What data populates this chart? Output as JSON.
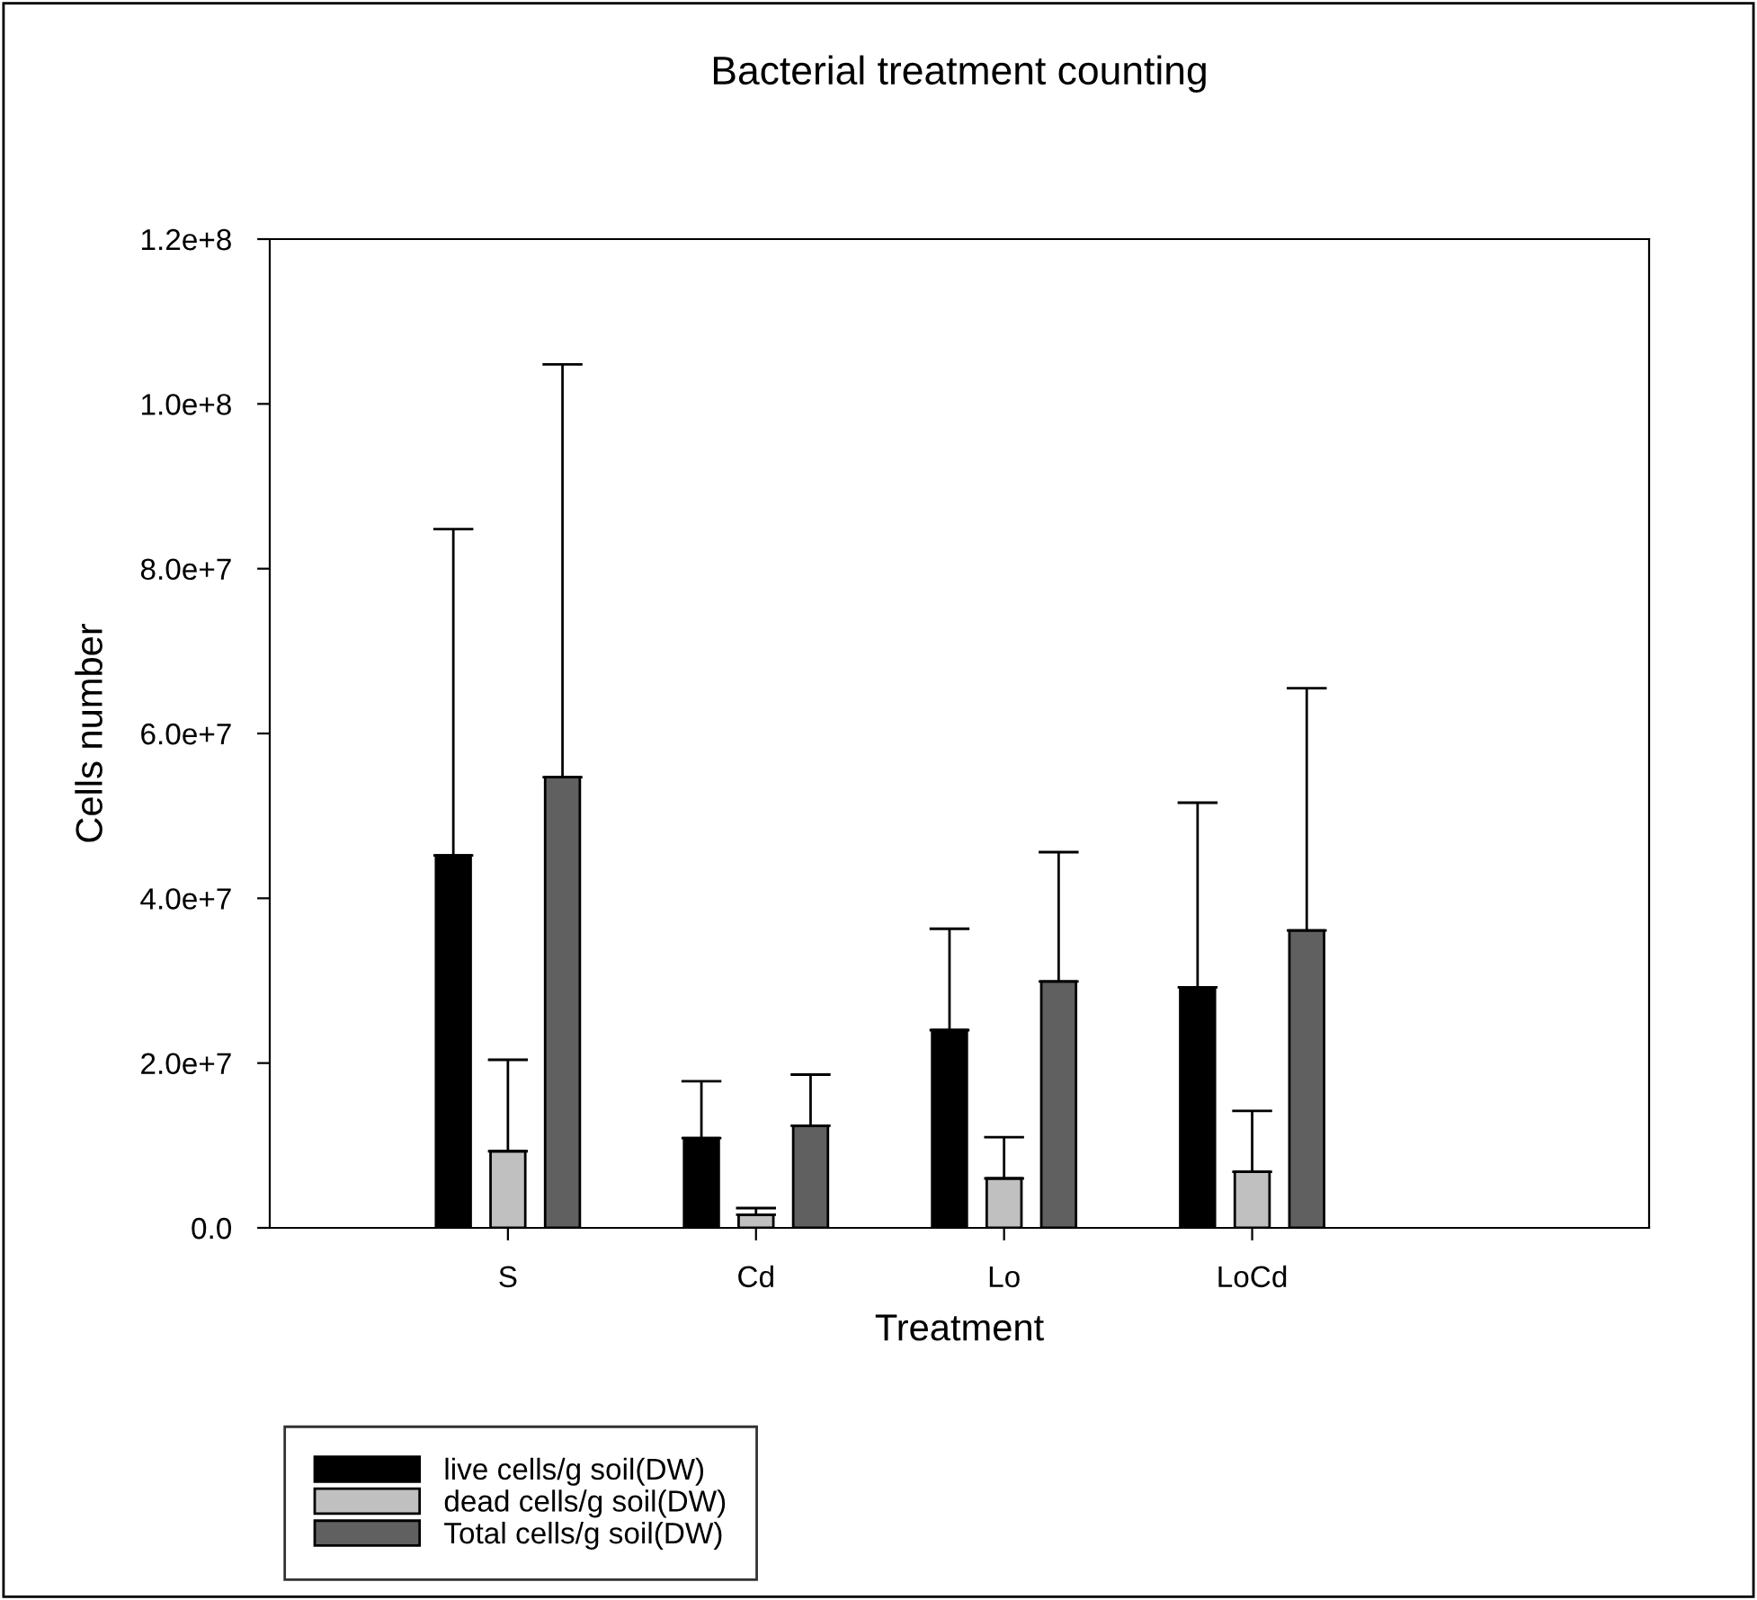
{
  "chart_data": {
    "type": "bar",
    "title": "Bacterial treatment counting",
    "xlabel": "Treatment",
    "ylabel": "Cells number",
    "categories": [
      "S",
      "Cd",
      "Lo",
      "LoCd"
    ],
    "series": [
      {
        "name": "live cells/g soil(DW)",
        "color": "#000000",
        "values": [
          45200000.0,
          10900000.0,
          24000000.0,
          29200000.0
        ],
        "errors": [
          [
            45200000.0,
            84800000.0
          ],
          [
            10900000.0,
            17800000.0
          ],
          [
            24000000.0,
            36300000.0
          ],
          [
            29200000.0,
            51600000.0
          ]
        ]
      },
      {
        "name": "dead cells/g soil(DW)",
        "color": "#c0c0c0",
        "values": [
          9300000.0,
          1600000.0,
          6000000.0,
          6800000.0
        ],
        "errors": [
          [
            9300000.0,
            20400000.0
          ],
          [
            1600000.0,
            2400000.0
          ],
          [
            6000000.0,
            11000000.0
          ],
          [
            6800000.0,
            14200000.0
          ]
        ]
      },
      {
        "name": "Total cells/g soil(DW)",
        "color": "#606060",
        "values": [
          54700000.0,
          12400000.0,
          29900000.0,
          36100000.0
        ],
        "errors": [
          [
            54700000.0,
            104800000.0
          ],
          [
            12400000.0,
            18600000.0
          ],
          [
            29900000.0,
            45600000.0
          ],
          [
            36100000.0,
            65500000.0
          ]
        ]
      }
    ],
    "ylim": [
      0,
      120000000.0
    ],
    "yticks": [
      {
        "value": 0,
        "label": "0.0"
      },
      {
        "value": 20000000.0,
        "label": "2.0e+7"
      },
      {
        "value": 40000000.0,
        "label": "4.0e+7"
      },
      {
        "value": 60000000.0,
        "label": "6.0e+7"
      },
      {
        "value": 80000000.0,
        "label": "8.0e+7"
      },
      {
        "value": 100000000.0,
        "label": "1.0e+8"
      },
      {
        "value": 120000000.0,
        "label": "1.2e+8"
      }
    ],
    "grid": false,
    "legend": "bottom left"
  }
}
